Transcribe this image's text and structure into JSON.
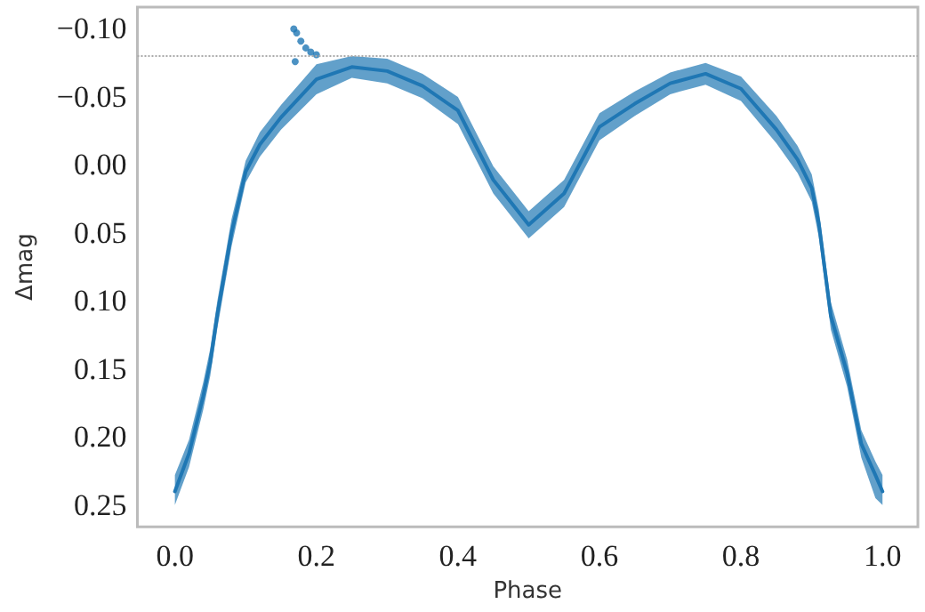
{
  "chart_data": {
    "type": "line",
    "xlabel": "Phase",
    "ylabel": "Δmag",
    "xlim": [
      -0.053,
      1.05
    ],
    "xticks": [
      {
        "value": 0,
        "label": "0.0"
      },
      {
        "value": 0.2,
        "label": "0.2"
      },
      {
        "value": 0.4,
        "label": "0.4"
      },
      {
        "value": 0.6,
        "label": "0.6"
      },
      {
        "value": 0.8,
        "label": "0.8"
      },
      {
        "value": 1,
        "label": "1.0"
      }
    ],
    "ylim": [
      0.266,
      -0.116
    ],
    "yticks": [
      {
        "value": -0.1,
        "label": "−0.10"
      },
      {
        "value": -0.05,
        "label": "−0.05"
      },
      {
        "value": 0,
        "label": "0.00"
      },
      {
        "value": 0.05,
        "label": "0.05"
      },
      {
        "value": 0.1,
        "label": "0.10"
      },
      {
        "value": 0.15,
        "label": "0.15"
      },
      {
        "value": 0.2,
        "label": "0.20"
      },
      {
        "value": 0.25,
        "label": "0.25"
      }
    ],
    "grid": false,
    "ref_lines": [
      {
        "axis": "y",
        "value": -0.081,
        "label": null,
        "color": "#aaaaaa",
        "line_style": "dotted"
      }
    ],
    "series": [
      {
        "color": "#1f77b4",
        "marker": "none",
        "x": [
          0,
          0.02,
          0.04,
          0.05,
          0.06,
          0.07,
          0.08,
          0.1,
          0.12,
          0.15,
          0.2,
          0.25,
          0.3,
          0.35,
          0.4,
          0.45,
          0.5,
          0.55,
          0.6,
          0.65,
          0.7,
          0.75,
          0.8,
          0.85,
          0.88,
          0.9,
          0.91,
          0.927,
          0.95,
          0.97,
          0.99,
          1
        ],
        "values": [
          0.24,
          0.212,
          0.17,
          0.145,
          0.11,
          0.08,
          0.05,
          0.005,
          -0.015,
          -0.035,
          -0.063,
          -0.072,
          -0.069,
          -0.058,
          -0.04,
          0.011,
          0.044,
          0.021,
          -0.028,
          -0.045,
          -0.06,
          -0.067,
          -0.056,
          -0.026,
          -0.004,
          0.017,
          0.043,
          0.111,
          0.153,
          0.205,
          0.228,
          0.24
        ],
        "lower": [
          0.25,
          0.222,
          0.18,
          0.155,
          0.12,
          0.09,
          0.06,
          0.013,
          -0.006,
          -0.026,
          -0.052,
          -0.064,
          -0.06,
          -0.049,
          -0.03,
          0.021,
          0.054,
          0.031,
          -0.018,
          -0.036,
          -0.052,
          -0.059,
          -0.047,
          -0.016,
          0.006,
          0.027,
          0.053,
          0.121,
          0.163,
          0.215,
          0.245,
          0.25
        ],
        "upper": [
          0.228,
          0.202,
          0.16,
          0.135,
          0.1,
          0.07,
          0.04,
          -0.003,
          -0.024,
          -0.044,
          -0.074,
          -0.08,
          -0.078,
          -0.067,
          -0.05,
          0.001,
          0.034,
          0.011,
          -0.038,
          -0.054,
          -0.068,
          -0.075,
          -0.065,
          -0.036,
          -0.014,
          0.007,
          0.033,
          0.101,
          0.143,
          0.195,
          0.218,
          0.228
        ]
      },
      {
        "type": "scatter",
        "color": "#1f77b4",
        "marker": "circle",
        "x": [
          0.168,
          0.172,
          0.178,
          0.185,
          0.192,
          0.2,
          0.17
        ],
        "values": [
          -0.1,
          -0.097,
          -0.091,
          -0.086,
          -0.083,
          -0.081,
          -0.076
        ]
      }
    ]
  }
}
